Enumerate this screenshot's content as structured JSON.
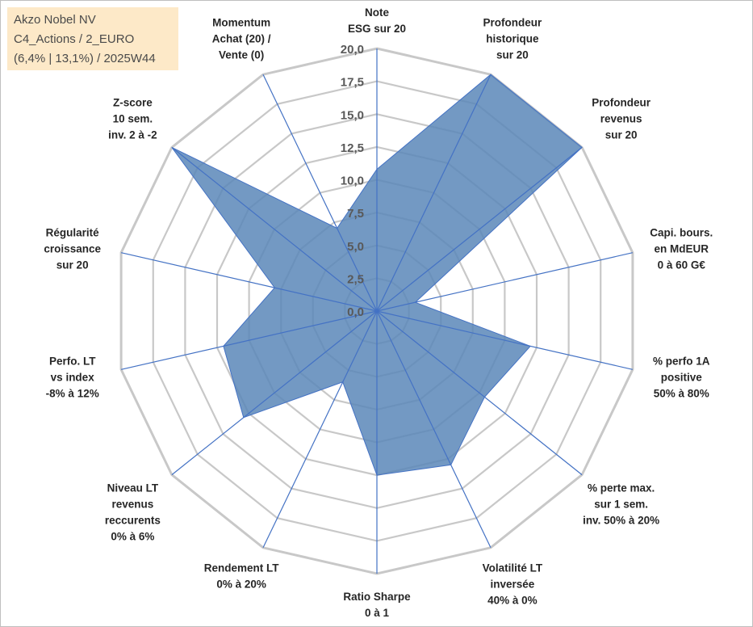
{
  "info_box": {
    "line1": "Akzo Nobel NV",
    "line2": "C4_Actions / 2_EURO",
    "line3": "(6,4% | 13,1%) / 2025W44"
  },
  "colors": {
    "fill": "#5b87b9",
    "stroke": "#4472c4",
    "grid": "#c8c8c8",
    "spoke": "#4472c4",
    "info_box_bg": "#fde9c8"
  },
  "chart_data": {
    "type": "radar",
    "rmin": 0,
    "rmax": 20,
    "ticks": [
      "0,0",
      "2,5",
      "5,0",
      "7,5",
      "10,0",
      "12,5",
      "15,0",
      "17,5",
      "20,0"
    ],
    "grid": true,
    "categories": [
      [
        "Note",
        "ESG sur 20"
      ],
      [
        "Profondeur",
        "historique",
        "sur 20"
      ],
      [
        "Profondeur",
        "revenus",
        "sur 20"
      ],
      [
        "Capi. bours.",
        "en MdEUR",
        "0 à 60 G€"
      ],
      [
        "% perfo 1A",
        "positive",
        "50% à 80%"
      ],
      [
        "% perte max.",
        "sur 1 sem.",
        "inv. 50% à 20%"
      ],
      [
        "Volatilité LT",
        "inversée",
        "40% à 0%"
      ],
      [
        "Ratio Sharpe",
        "0 à 1"
      ],
      [
        "Rendement LT",
        "0% à 20%"
      ],
      [
        "Niveau LT",
        "revenus",
        "reccurents",
        "0% à 6%"
      ],
      [
        "Perfo. LT",
        "vs index",
        "-8% à 12%"
      ],
      [
        "Régularité",
        "croissance",
        "sur 20"
      ],
      [
        "Z-score",
        "10 sem.",
        "inv. 2 à -2"
      ],
      [
        "Momentum",
        "Achat (20) /",
        "Vente (0)"
      ]
    ],
    "values": [
      10.8,
      20,
      20,
      3.0,
      12.0,
      10.5,
      13.0,
      12.5,
      6.0,
      13.0,
      12.0,
      8.0,
      20,
      7.0
    ]
  }
}
